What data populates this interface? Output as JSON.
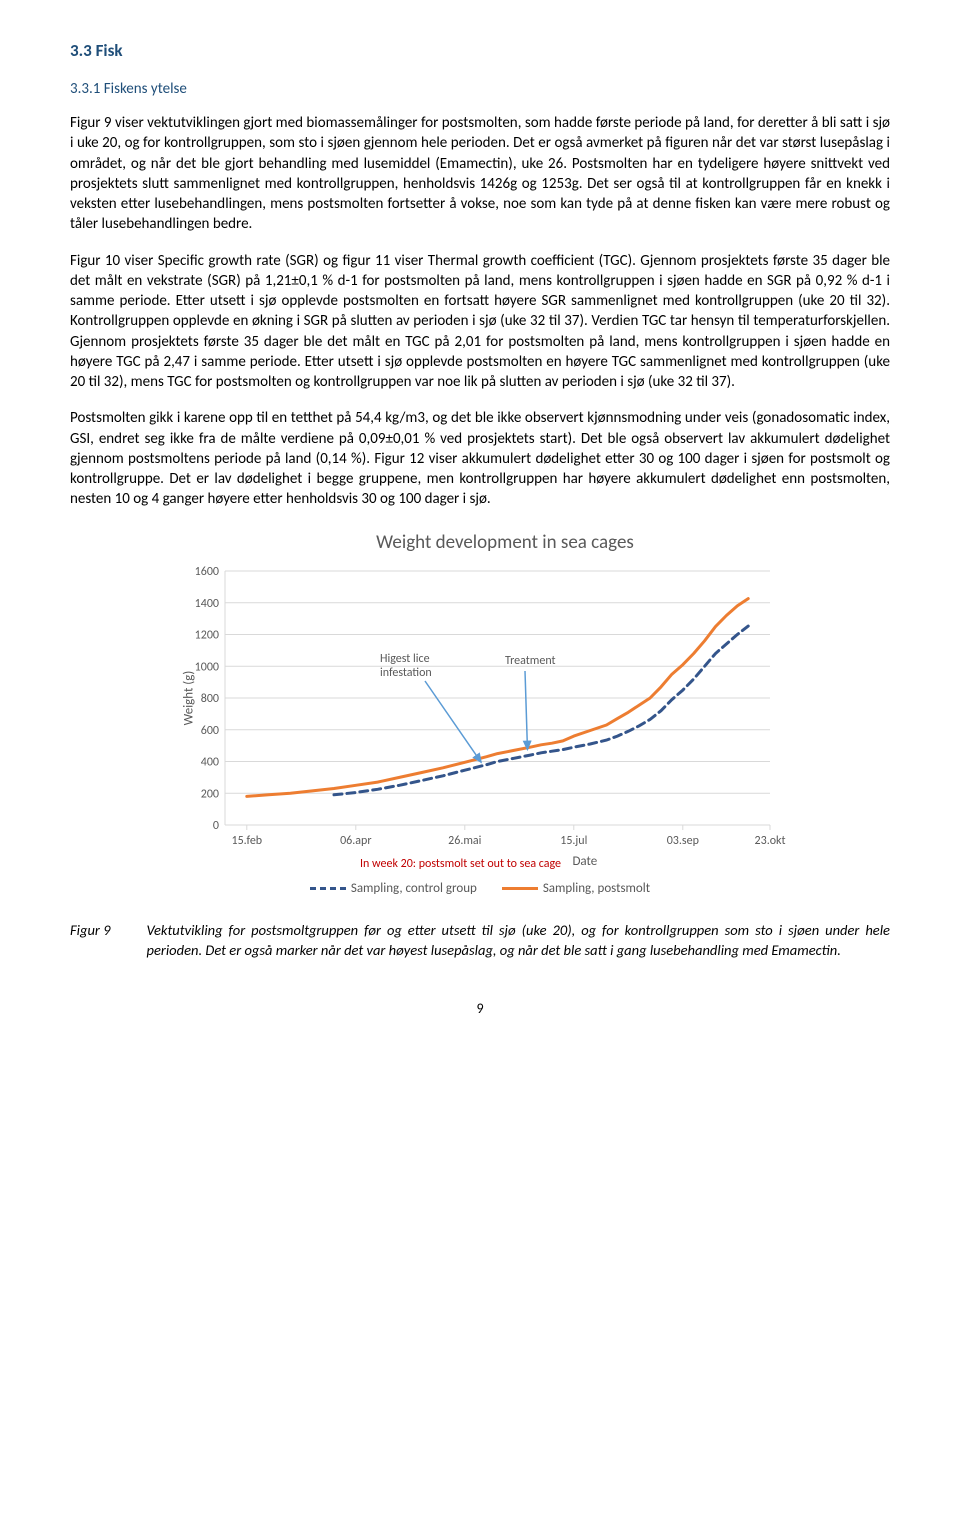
{
  "headings": {
    "h3": "3.3   Fisk",
    "h4": "3.3.1   Fiskens ytelse"
  },
  "paragraphs": {
    "p1": "Figur 9 viser vektutviklingen gjort med biomassemålinger for postsmolten, som hadde første periode på land, for deretter å bli satt i sjø i uke 20, og for kontrollgruppen, som sto i sjøen gjennom hele perioden. Det er også avmerket på figuren når det var størst lusepåslag i området, og når det ble gjort behandling med lusemiddel (Emamectin), uke 26. Postsmolten har en tydeligere høyere snittvekt ved prosjektets slutt sammenlignet med kontrollgruppen, henholdsvis 1426g og 1253g. Det ser også til at kontrollgruppen får en knekk i veksten etter lusebehandlingen, mens postsmolten fortsetter å vokse, noe som kan tyde på at denne fisken kan være mere robust og tåler lusebehandlingen bedre.",
    "p2": "Figur 10 viser Specific growth rate (SGR) og figur 11 viser Thermal growth coefficient (TGC). Gjennom prosjektets første 35 dager ble det målt en vekstrate (SGR) på 1,21±0,1 % d-1 for postsmolten på land, mens kontrollgruppen i sjøen hadde en SGR på 0,92 % d-1 i samme periode. Etter utsett i sjø opplevde postsmolten en fortsatt høyere SGR sammenlignet med kontrollgruppen (uke 20 til 32). Kontrollgruppen opplevde en økning i SGR på slutten av perioden i sjø (uke 32 til 37). Verdien TGC tar hensyn til temperaturforskjellen. Gjennom prosjektets første 35 dager ble det målt en TGC på 2,01 for postsmolten på land, mens kontrollgruppen i sjøen hadde en høyere TGC på 2,47 i samme periode. Etter utsett i sjø opplevde postsmolten en høyere TGC sammenlignet med kontrollgruppen (uke 20 til 32), mens TGC for postsmolten og kontrollgruppen var noe lik på slutten av perioden i sjø (uke 32 til 37).",
    "p3": "Postsmolten gikk i karene opp til en tetthet på 54,4 kg/m3, og det ble ikke observert kjønnsmodning under veis (gonadosomatic index, GSI, endret seg ikke fra de målte verdiene på 0,09±0,01 % ved prosjektets start). Det ble også observert lav akkumulert dødelighet gjennom postsmoltens periode på land (0,14 %). Figur 12 viser akkumulert dødelighet etter 30 og 100 dager i sjøen for postsmolt og kontrollgruppe. Det er lav dødelighet i begge gruppene, men kontrollgruppen har høyere akkumulert dødelighet enn postsmolten, nesten 10 og 4 ganger høyere etter henholdsvis 30 og 100 dager i sjø."
  },
  "chart": {
    "type": "line",
    "title": "Weight development in sea cages",
    "ylabel": "Weight (g)",
    "xlabel": "Date",
    "yticks": [
      0,
      200,
      400,
      600,
      800,
      1000,
      1200,
      1400,
      1600
    ],
    "xticks": [
      "15.feb",
      "06.apr",
      "26.mai",
      "15.jul",
      "03.sep",
      "23.okt"
    ],
    "series": {
      "postsmolt": {
        "label": "Sampling, postsmolt",
        "color": "#ed7d31",
        "style": "solid",
        "width": 3,
        "points": [
          [
            0.04,
            180
          ],
          [
            0.08,
            190
          ],
          [
            0.12,
            200
          ],
          [
            0.16,
            215
          ],
          [
            0.2,
            230
          ],
          [
            0.24,
            250
          ],
          [
            0.28,
            270
          ],
          [
            0.32,
            300
          ],
          [
            0.36,
            330
          ],
          [
            0.4,
            360
          ],
          [
            0.44,
            395
          ],
          [
            0.48,
            430
          ],
          [
            0.5,
            450
          ],
          [
            0.53,
            470
          ],
          [
            0.56,
            490
          ],
          [
            0.58,
            505
          ],
          [
            0.6,
            515
          ],
          [
            0.62,
            530
          ],
          [
            0.64,
            560
          ],
          [
            0.67,
            595
          ],
          [
            0.7,
            630
          ],
          [
            0.72,
            670
          ],
          [
            0.74,
            710
          ],
          [
            0.76,
            755
          ],
          [
            0.78,
            800
          ],
          [
            0.8,
            870
          ],
          [
            0.82,
            950
          ],
          [
            0.84,
            1010
          ],
          [
            0.86,
            1080
          ],
          [
            0.88,
            1160
          ],
          [
            0.9,
            1250
          ],
          [
            0.92,
            1320
          ],
          [
            0.94,
            1380
          ],
          [
            0.96,
            1426
          ]
        ]
      },
      "control": {
        "label": "Sampling, control group",
        "color": "#34558b",
        "style": "dashed",
        "width": 3,
        "points": [
          [
            0.2,
            190
          ],
          [
            0.24,
            205
          ],
          [
            0.28,
            225
          ],
          [
            0.32,
            250
          ],
          [
            0.36,
            280
          ],
          [
            0.4,
            310
          ],
          [
            0.44,
            345
          ],
          [
            0.48,
            380
          ],
          [
            0.5,
            400
          ],
          [
            0.53,
            420
          ],
          [
            0.56,
            440
          ],
          [
            0.58,
            455
          ],
          [
            0.6,
            465
          ],
          [
            0.62,
            475
          ],
          [
            0.64,
            490
          ],
          [
            0.67,
            510
          ],
          [
            0.7,
            535
          ],
          [
            0.72,
            560
          ],
          [
            0.74,
            590
          ],
          [
            0.76,
            625
          ],
          [
            0.78,
            665
          ],
          [
            0.8,
            720
          ],
          [
            0.82,
            790
          ],
          [
            0.84,
            850
          ],
          [
            0.86,
            920
          ],
          [
            0.88,
            1000
          ],
          [
            0.9,
            1080
          ],
          [
            0.92,
            1140
          ],
          [
            0.94,
            1200
          ],
          [
            0.96,
            1253
          ]
        ]
      }
    },
    "annotations": {
      "lice": "Higest lice\ninfestation",
      "treatment": "Treatment",
      "week20": "In week 20: postsmolt set out to sea cage"
    },
    "legend": {
      "control": "Sampling, control group",
      "postsmolt": "Sampling, postsmolt"
    },
    "plot": {
      "background": "#ffffff",
      "grid_color": "#d9d9d9",
      "axis_color": "#d9d9d9",
      "text_color": "#595959",
      "arrow_color": "#5b9bd5"
    }
  },
  "figure_caption": {
    "label": "Figur 9",
    "text": "Vektutvikling for postsmoltgruppen før og etter utsett til sjø (uke 20), og for kontrollgruppen som sto i sjøen under hele perioden. Det er også marker når det var høyest lusepåslag, og når det ble satt i gang lusebehandling med Emamectin."
  },
  "page_number": "9"
}
